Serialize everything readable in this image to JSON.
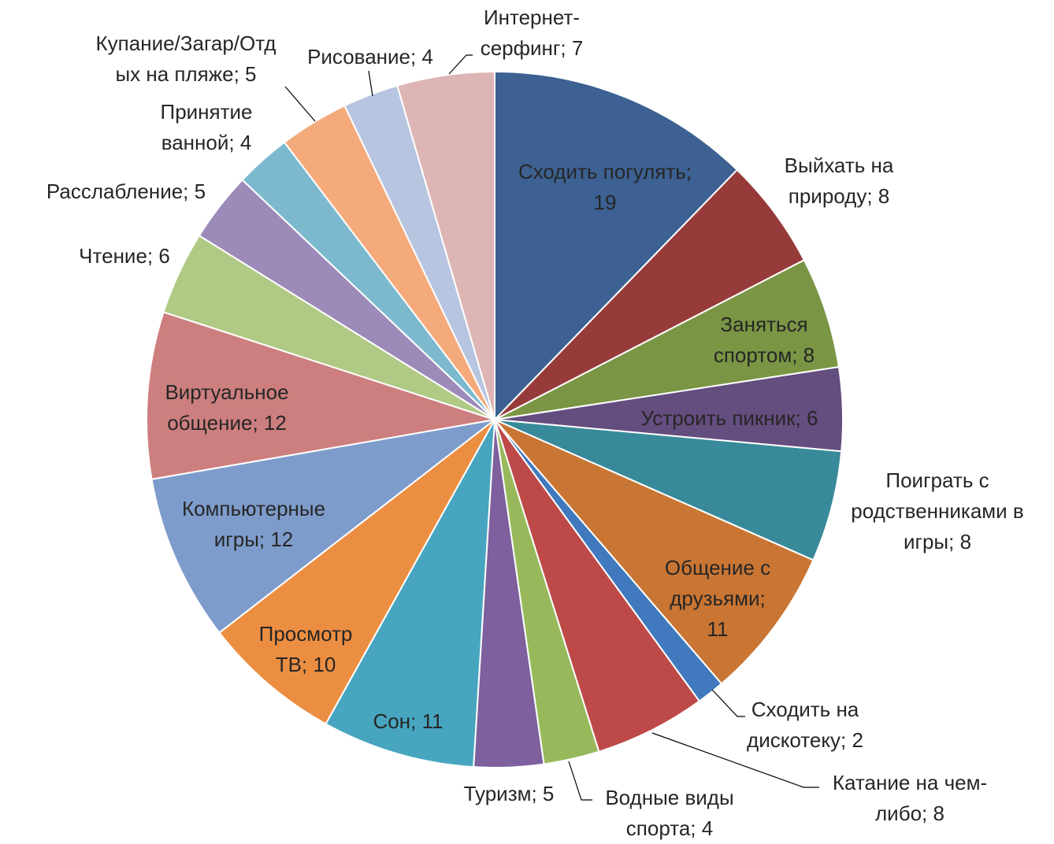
{
  "chart_data": {
    "type": "pie",
    "title": "",
    "start_angle_deg": 0,
    "direction": "clockwise",
    "slices": [
      {
        "line1": "Сходить погулять;",
        "line2": "19",
        "value": 19,
        "color": "#3c6192"
      },
      {
        "line1": "Выйхать на",
        "line2": "природу; 8",
        "value": 8,
        "color": "#973b3a"
      },
      {
        "line1": "Заняться",
        "line2": "спортом; 8",
        "value": 8,
        "color": "#7a9544"
      },
      {
        "line1": "Устроить пикник; 6",
        "line2": "",
        "value": 6,
        "color": "#644d7f"
      },
      {
        "line1": "Поиграть с",
        "line2": "родственниками в",
        "line3": "игры; 8",
        "value": 8,
        "color": "#388a9a"
      },
      {
        "line1": "Общение с",
        "line2": "друзьями;",
        "line3": "11",
        "value": 11,
        "color": "#c97533"
      },
      {
        "line1": "Сходить на",
        "line2": "дискотеку; 2",
        "value": 2,
        "color": "#4079bd"
      },
      {
        "line1": "Катание на чем-",
        "line2": "либо; 8",
        "value": 8,
        "color": "#bd4a48"
      },
      {
        "line1": "Водные виды",
        "line2": "спорта; 4",
        "value": 4,
        "color": "#97b95b"
      },
      {
        "line1": "Туризм; 5",
        "line2": "",
        "value": 5,
        "color": "#7d609d"
      },
      {
        "line1": "Сон; 11",
        "line2": "",
        "value": 11,
        "color": "#47a5bf"
      },
      {
        "line1": "Просмотр",
        "line2": "ТВ; 10",
        "value": 10,
        "color": "#ec8e42"
      },
      {
        "line1": "Компьютерные",
        "line2": "игры; 12",
        "value": 12,
        "color": "#7e9ccb"
      },
      {
        "line1": "Виртуальное",
        "line2": "общение; 12",
        "value": 12,
        "color": "#cc7f7e"
      },
      {
        "line1": "Чтение; 6",
        "line2": "",
        "value": 6,
        "color": "#b0c984"
      },
      {
        "line1": "Расслабление; 5",
        "line2": "",
        "value": 5,
        "color": "#9c8ab9"
      },
      {
        "line1": "Принятие",
        "line2": "ванной; 4",
        "value": 4,
        "color": "#7cb9ce"
      },
      {
        "line1": "Купание/Загар/Отд",
        "line2": "ых на пляже; 5",
        "value": 5,
        "color": "#f5aa7b"
      },
      {
        "line1": "Рисование; 4",
        "line2": "",
        "value": 4,
        "color": "#b7c5e0"
      },
      {
        "line1": "Интернет-",
        "line2": "серфинг; 7",
        "value": 7,
        "color": "#deb5b5"
      }
    ]
  }
}
